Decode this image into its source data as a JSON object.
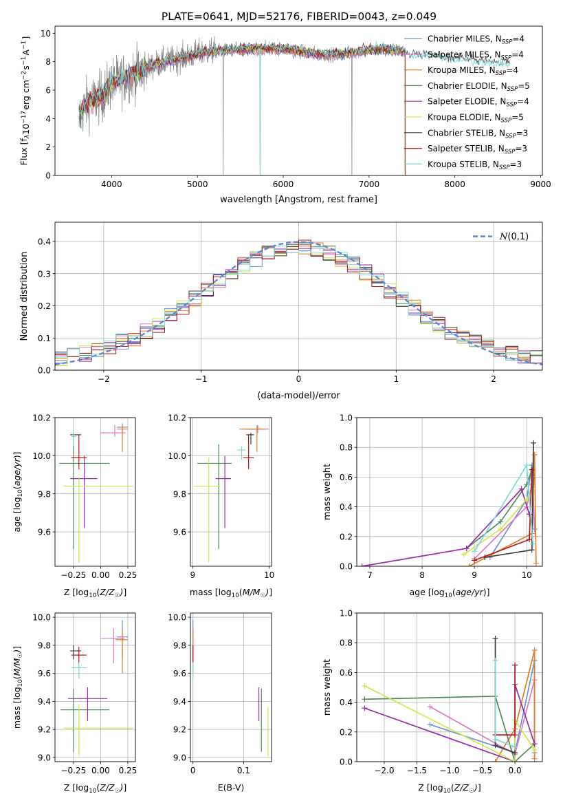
{
  "figure_title": "PLATE=0641, MJD=52176, FIBERID=0043, z=0.049",
  "colors": {
    "Chabrier MILES": "#6a8fd6",
    "Salpeter MILES": "#e377c2",
    "Kroupa MILES": "#e07b24",
    "Chabrier ELODIE": "#4f8a57",
    "Salpeter ELODIE": "#9b2aa8",
    "Kroupa ELODIE": "#cbe84b",
    "Chabrier STELIB": "#3c3c3c",
    "Salpeter STELIB": "#b51616",
    "Kroupa STELIB": "#7ed8d8",
    "data": "#808080"
  },
  "chart_data": [
    {
      "type": "line",
      "id": "spectrum",
      "xlabel": "wavelength [Angstrom, rest frame]",
      "ylabel": "Flux [f_λ10^-17 erg cm^-2 s^-1 A^-1]",
      "xlim": [
        3340,
        9020
      ],
      "ylim": [
        0,
        10.5
      ],
      "xticks": [
        4000,
        5000,
        6000,
        7000,
        8000,
        9000
      ],
      "yticks": [
        0,
        2,
        4,
        6,
        8,
        10
      ],
      "grid": false,
      "legend_position": "right",
      "legend": [
        {
          "name": "Chabrier MILES",
          "nssp": "4"
        },
        {
          "name": "Salpeter MILES",
          "nssp": "4"
        },
        {
          "name": "Kroupa MILES",
          "nssp": "4"
        },
        {
          "name": "Chabrier ELODIE",
          "nssp": "5"
        },
        {
          "name": "Salpeter ELODIE",
          "nssp": "4"
        },
        {
          "name": "Kroupa ELODIE",
          "nssp": "5"
        },
        {
          "name": "Chabrier STELIB",
          "nssp": "3"
        },
        {
          "name": "Salpeter STELIB",
          "nssp": "3"
        },
        {
          "name": "Kroupa STELIB",
          "nssp": "3"
        }
      ],
      "continuum": {
        "x": [
          3620,
          3700,
          3800,
          3900,
          4000,
          4100,
          4200,
          4300,
          4400,
          4500,
          4700,
          4900,
          5100,
          5300,
          5500,
          5700,
          5900,
          6100,
          6300,
          6500,
          6700,
          6900,
          7100,
          7300,
          7420
        ],
        "y": [
          4.0,
          5.0,
          5.3,
          5.6,
          6.5,
          6.7,
          7.0,
          7.2,
          7.5,
          7.8,
          8.1,
          8.4,
          8.7,
          8.8,
          8.85,
          8.9,
          8.95,
          8.85,
          8.6,
          8.5,
          8.55,
          8.75,
          8.85,
          8.8,
          8.7
        ]
      },
      "model_extension": {
        "x": [
          7420,
          7550,
          7700,
          7850,
          8000,
          8200,
          8400,
          8550,
          8650
        ],
        "y": [
          8.7,
          8.5,
          8.6,
          8.4,
          8.3,
          8.2,
          8.0,
          8.0,
          7.9
        ]
      },
      "absorption_dips": [
        {
          "x": 5300,
          "y": 0.0
        },
        {
          "x": 5730,
          "y": 0.0
        },
        {
          "x": 6800,
          "y": 0.0
        }
      ],
      "spectrum_end": 7420
    },
    {
      "type": "step",
      "id": "residuals",
      "xlabel": "(data-model)/error",
      "ylabel": "Normed distribution",
      "xlim": [
        -2.5,
        2.5
      ],
      "ylim": [
        0,
        0.46
      ],
      "xticks": [
        -2,
        -1,
        0,
        1,
        2
      ],
      "yticks": [
        0.0,
        0.1,
        0.2,
        0.3,
        0.4
      ],
      "grid": true,
      "bins": 40,
      "curve_label": "N(0,1)",
      "legend_position": "upper right"
    },
    {
      "type": "errorbar",
      "id": "age_vs_Z",
      "xlabel": "Z [log10(Z/Z☉)]",
      "ylabel": "age  [log10(age/yr)]",
      "xlim": [
        -0.42,
        0.32
      ],
      "ylim": [
        9.42,
        10.2
      ],
      "xticks": [
        -0.25,
        0.0,
        0.25
      ],
      "xtick_labels": [
        "−0.25",
        "0.00",
        "0.25"
      ],
      "yticks": [
        9.6,
        9.8,
        10.0,
        10.2
      ],
      "grid": true,
      "points": [
        {
          "model": "Chabrier MILES",
          "x": 0.2,
          "xerr": [
            0.05,
            0.05
          ],
          "y": 10.15,
          "yerr": [
            0.02,
            0.02
          ]
        },
        {
          "model": "Salpeter MILES",
          "x": 0.13,
          "xerr": [
            0.13,
            0.1
          ],
          "y": 10.12,
          "yerr": [
            0.02,
            0.04
          ]
        },
        {
          "model": "Kroupa MILES",
          "x": 0.2,
          "xerr": [
            0.05,
            0.05
          ],
          "y": 10.14,
          "yerr": [
            0.12,
            0.02
          ]
        },
        {
          "model": "Chabrier ELODIE",
          "x": -0.25,
          "xerr": [
            0.13,
            0.33
          ],
          "y": 9.96,
          "yerr": [
            0.45,
            0.1
          ]
        },
        {
          "model": "Salpeter ELODIE",
          "x": -0.15,
          "xerr": [
            0.13,
            0.12
          ],
          "y": 9.88,
          "yerr": [
            0.26,
            0.12
          ]
        },
        {
          "model": "Kroupa ELODIE",
          "x": -0.2,
          "xerr": [
            0.14,
            0.5
          ],
          "y": 9.84,
          "yerr": [
            0.4,
            0.05
          ]
        },
        {
          "model": "Chabrier STELIB",
          "x": -0.25,
          "xerr": [
            0.03,
            0.07
          ],
          "y": 10.11,
          "yerr": [
            0.05,
            0.01
          ]
        },
        {
          "model": "Salpeter STELIB",
          "x": -0.2,
          "xerr": [
            0.07,
            0.07
          ],
          "y": 9.99,
          "yerr": [
            0.06,
            0.12
          ]
        },
        {
          "model": "Kroupa STELIB",
          "x": -0.25,
          "xerr": [
            0.02,
            0.02
          ],
          "y": 10.1,
          "yerr": [
            0.05,
            0.02
          ]
        }
      ]
    },
    {
      "type": "errorbar",
      "id": "age_vs_mass",
      "xlabel": "mass [log10(M/M☉)]",
      "ylabel": "",
      "xlim": [
        8.97,
        10.03
      ],
      "ylim": [
        9.42,
        10.2
      ],
      "xticks": [
        9,
        10
      ],
      "yticks": [
        9.6,
        9.8,
        10.0,
        10.2
      ],
      "grid": true,
      "points": [
        {
          "model": "Chabrier MILES",
          "x": 9.85,
          "xerr": [
            0.16,
            0.1
          ],
          "y": 10.14,
          "yerr": [
            0.02,
            0.02
          ]
        },
        {
          "model": "Salpeter MILES",
          "x": 9.85,
          "xerr": [
            0.18,
            0.15
          ],
          "y": 10.14,
          "yerr": [
            0.02,
            0.02
          ]
        },
        {
          "model": "Kroupa MILES",
          "x": 9.84,
          "xerr": [
            0.23,
            0.1
          ],
          "y": 10.14,
          "yerr": [
            0.12,
            0.02
          ]
        },
        {
          "model": "Chabrier ELODIE",
          "x": 9.34,
          "xerr": [
            0.28,
            0.17
          ],
          "y": 9.96,
          "yerr": [
            0.45,
            0.1
          ]
        },
        {
          "model": "Salpeter ELODIE",
          "x": 9.42,
          "xerr": [
            0.12,
            0.08
          ],
          "y": 9.88,
          "yerr": [
            0.26,
            0.12
          ]
        },
        {
          "model": "Kroupa ELODIE",
          "x": 9.21,
          "xerr": [
            0.2,
            0.15
          ],
          "y": 9.84,
          "yerr": [
            0.4,
            0.15
          ]
        },
        {
          "model": "Chabrier STELIB",
          "x": 9.76,
          "xerr": [
            0.06,
            0.04
          ],
          "y": 10.11,
          "yerr": [
            0.05,
            0.01
          ]
        },
        {
          "model": "Salpeter STELIB",
          "x": 9.73,
          "xerr": [
            0.07,
            0.07
          ],
          "y": 9.99,
          "yerr": [
            0.06,
            0.12
          ]
        },
        {
          "model": "Kroupa STELIB",
          "x": 9.64,
          "xerr": [
            0.06,
            0.05
          ],
          "y": 10.03,
          "yerr": [
            0.05,
            0.02
          ]
        }
      ]
    },
    {
      "type": "line",
      "id": "mass_weight_vs_age",
      "xlabel": "age  [log10(age/yr)]",
      "ylabel": "mass weight",
      "xlim": [
        6.75,
        10.3
      ],
      "ylim": [
        0,
        1.0
      ],
      "xticks": [
        7,
        8,
        9,
        10
      ],
      "yticks": [
        0.0,
        0.2,
        0.4,
        0.6,
        0.8,
        1.0
      ],
      "grid": true,
      "series": [
        {
          "model": "Chabrier MILES",
          "x": [
            9.3,
            10.0,
            10.1,
            10.15
          ],
          "y": [
            0.06,
            0.45,
            0.68,
            0.25
          ]
        },
        {
          "model": "Salpeter MILES",
          "x": [
            9.0,
            10.0,
            10.1,
            10.17
          ],
          "y": [
            0.05,
            0.4,
            0.55,
            0.2
          ]
        },
        {
          "model": "Kroupa MILES",
          "x": [
            8.9,
            10.1,
            10.15,
            10.18
          ],
          "y": [
            0.0,
            0.22,
            0.75,
            0.02
          ]
        },
        {
          "model": "Chabrier ELODIE",
          "x": [
            8.85,
            9.5,
            10.0,
            10.1
          ],
          "y": [
            0.12,
            0.3,
            0.55,
            0.65
          ]
        },
        {
          "model": "Salpeter ELODIE",
          "x": [
            6.85,
            8.85,
            9.9,
            10.05
          ],
          "y": [
            0.0,
            0.12,
            0.52,
            0.35
          ]
        },
        {
          "model": "Kroupa ELODIE",
          "x": [
            8.8,
            9.5,
            10.0,
            10.12
          ],
          "y": [
            0.08,
            0.25,
            0.45,
            0.52
          ]
        },
        {
          "model": "Chabrier STELIB",
          "x": [
            9.2,
            10.1,
            10.13
          ],
          "y": [
            0.06,
            0.11,
            0.83
          ]
        },
        {
          "model": "Salpeter STELIB",
          "x": [
            9.0,
            10.05,
            10.1
          ],
          "y": [
            0.04,
            0.18,
            0.65
          ]
        },
        {
          "model": "Kroupa STELIB",
          "x": [
            9.0,
            10.0,
            10.12
          ],
          "y": [
            0.1,
            0.68,
            0.15
          ]
        }
      ]
    },
    {
      "type": "errorbar",
      "id": "mass_vs_Z",
      "xlabel": "Z [log10(Z/Z☉)]",
      "ylabel": "mass [log10(M/M☉)]",
      "xlim": [
        -0.42,
        0.32
      ],
      "ylim": [
        8.97,
        10.03
      ],
      "xticks": [
        -0.25,
        0.0,
        0.25
      ],
      "xtick_labels": [
        "−0.25",
        "0.00",
        "0.25"
      ],
      "yticks": [
        9.0,
        9.2,
        9.4,
        9.6,
        9.8,
        10.0
      ],
      "grid": true,
      "points": [
        {
          "model": "Chabrier MILES",
          "x": 0.2,
          "xerr": [
            0.05,
            0.05
          ],
          "y": 9.86,
          "yerr": [
            0.15,
            0.12
          ]
        },
        {
          "model": "Salpeter MILES",
          "x": 0.12,
          "xerr": [
            0.12,
            0.1
          ],
          "y": 9.85,
          "yerr": [
            0.18,
            0.07
          ]
        },
        {
          "model": "Kroupa MILES",
          "x": 0.2,
          "xerr": [
            0.06,
            0.05
          ],
          "y": 9.84,
          "yerr": [
            0.24,
            0.07
          ]
        },
        {
          "model": "Chabrier ELODIE",
          "x": -0.25,
          "xerr": [
            0.12,
            0.33
          ],
          "y": 9.34,
          "yerr": [
            0.3,
            0.15
          ]
        },
        {
          "model": "Salpeter ELODIE",
          "x": -0.12,
          "xerr": [
            0.18,
            0.18
          ],
          "y": 9.42,
          "yerr": [
            0.16,
            0.08
          ]
        },
        {
          "model": "Kroupa ELODIE",
          "x": -0.2,
          "xerr": [
            0.14,
            0.5
          ],
          "y": 9.21,
          "yerr": [
            0.2,
            0.17
          ]
        },
        {
          "model": "Chabrier STELIB",
          "x": -0.25,
          "xerr": [
            0.03,
            0.07
          ],
          "y": 9.76,
          "yerr": [
            0.06,
            0.04
          ]
        },
        {
          "model": "Salpeter STELIB",
          "x": -0.2,
          "xerr": [
            0.07,
            0.07
          ],
          "y": 9.73,
          "yerr": [
            0.06,
            0.06
          ]
        },
        {
          "model": "Kroupa STELIB",
          "x": -0.2,
          "xerr": [
            0.07,
            0.07
          ],
          "y": 9.64,
          "yerr": [
            0.08,
            0.04
          ]
        }
      ]
    },
    {
      "type": "errorbar",
      "id": "mass_vs_ebv",
      "xlabel": "E(B-V)",
      "ylabel": "",
      "xlim": [
        -0.005,
        0.155
      ],
      "ylim": [
        8.97,
        10.03
      ],
      "xticks": [
        0.0,
        0.1
      ],
      "yticks": [
        9.0,
        9.2,
        9.4,
        9.6,
        9.8,
        10.0
      ],
      "grid": true,
      "points": [
        {
          "model": "Chabrier MILES",
          "x": 0.0,
          "xerr": [
            0,
            0
          ],
          "y": 9.86,
          "yerr": [
            0.15,
            0.12
          ]
        },
        {
          "model": "Salpeter MILES",
          "x": 0.0,
          "xerr": [
            0,
            0
          ],
          "y": 9.85,
          "yerr": [
            0.18,
            0.07
          ]
        },
        {
          "model": "Kroupa MILES",
          "x": 0.0,
          "xerr": [
            0,
            0
          ],
          "y": 9.84,
          "yerr": [
            0.24,
            0.07
          ]
        },
        {
          "model": "Chabrier ELODIE",
          "x": 0.135,
          "xerr": [
            0,
            0
          ],
          "y": 9.34,
          "yerr": [
            0.3,
            0.15
          ]
        },
        {
          "model": "Salpeter ELODIE",
          "x": 0.13,
          "xerr": [
            0,
            0
          ],
          "y": 9.42,
          "yerr": [
            0.16,
            0.08
          ]
        },
        {
          "model": "Kroupa ELODIE",
          "x": 0.148,
          "xerr": [
            0,
            0
          ],
          "y": 9.21,
          "yerr": [
            0.2,
            0.15
          ]
        },
        {
          "model": "Chabrier STELIB",
          "x": 0.0,
          "xerr": [
            0,
            0
          ],
          "y": 9.76,
          "yerr": [
            0.06,
            0.04
          ]
        },
        {
          "model": "Salpeter STELIB",
          "x": 0.0,
          "xerr": [
            0,
            0
          ],
          "y": 9.73,
          "yerr": [
            0.06,
            0.06
          ]
        },
        {
          "model": "Kroupa STELIB",
          "x": 0.0,
          "xerr": [
            0,
            0
          ],
          "y": 9.64,
          "yerr": [
            0.08,
            0.04
          ]
        }
      ]
    },
    {
      "type": "line",
      "id": "mass_weight_vs_Z",
      "xlabel": "Z [log10(Z/Z☉)]",
      "ylabel": "mass weight",
      "xlim": [
        -2.42,
        0.42
      ],
      "ylim": [
        0,
        1.0
      ],
      "xticks": [
        -2.0,
        -1.5,
        -1.0,
        -0.5,
        0.0
      ],
      "xtick_labels": [
        "−2.0",
        "−1.5",
        "−1.0",
        "−0.5",
        "0.0"
      ],
      "yticks": [
        0.0,
        0.2,
        0.4,
        0.6,
        0.8,
        1.0
      ],
      "grid": true,
      "series": [
        {
          "model": "Chabrier MILES",
          "x": [
            -1.3,
            0.0,
            0.3,
            0.3
          ],
          "y": [
            0.25,
            0.06,
            0.68,
            0.06
          ]
        },
        {
          "model": "Salpeter MILES",
          "x": [
            -1.3,
            0.0,
            0.3,
            0.3
          ],
          "y": [
            0.37,
            0.05,
            0.55,
            0.2
          ]
        },
        {
          "model": "Kroupa MILES",
          "x": [
            -0.3,
            0.0,
            0.3,
            0.3
          ],
          "y": [
            0.0,
            0.22,
            0.75,
            0.02
          ]
        },
        {
          "model": "Chabrier ELODIE",
          "x": [
            -2.3,
            -0.3,
            0.0,
            0.3
          ],
          "y": [
            0.42,
            0.44,
            0.0,
            0.12
          ]
        },
        {
          "model": "Salpeter ELODIE",
          "x": [
            -2.3,
            0.0,
            0.0,
            0.3
          ],
          "y": [
            0.36,
            0.0,
            0.52,
            0.12
          ]
        },
        {
          "model": "Kroupa ELODIE",
          "x": [
            -2.3,
            0.0,
            0.0,
            0.3
          ],
          "y": [
            0.51,
            0.0,
            0.28,
            0.08
          ]
        },
        {
          "model": "Chabrier STELIB",
          "x": [
            -0.3,
            -0.3,
            0.0
          ],
          "y": [
            0.83,
            0.11,
            0.06
          ]
        },
        {
          "model": "Salpeter STELIB",
          "x": [
            -0.3,
            0.0,
            0.0
          ],
          "y": [
            0.18,
            0.18,
            0.65
          ]
        },
        {
          "model": "Kroupa STELIB",
          "x": [
            -0.3,
            -0.3,
            0.0
          ],
          "y": [
            0.68,
            0.15,
            0.1
          ]
        }
      ]
    }
  ]
}
